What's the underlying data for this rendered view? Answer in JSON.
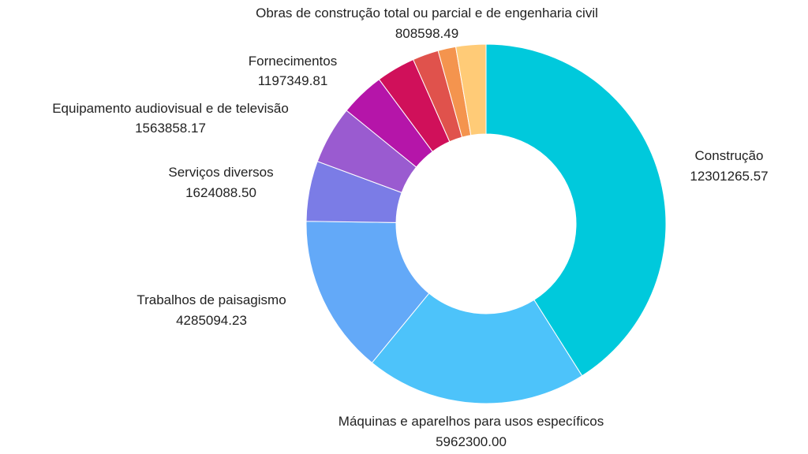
{
  "chart_data": {
    "type": "pie",
    "variant": "donut",
    "title": "",
    "legend": "none",
    "slices": [
      {
        "label": "Construção",
        "value_text": "12301265.57",
        "value": 12301265.57,
        "color": "#00C9DC"
      },
      {
        "label": "Máquinas e aparelhos para usos específicos",
        "value_text": "5962300.00",
        "value": 5962300.0,
        "color": "#4DC3FA"
      },
      {
        "label": "Trabalhos de paisagismo",
        "value_text": "4285094.23",
        "value": 4285094.23,
        "color": "#63A9F8"
      },
      {
        "label": "Serviços diversos",
        "value_text": "1624088.50",
        "value": 1624088.5,
        "color": "#7B7CE6"
      },
      {
        "label": "Equipamento audiovisual e de televisão",
        "value_text": "1563858.17",
        "value": 1563858.17,
        "color": "#9A5BD0"
      },
      {
        "label": "Fornecimentos",
        "value_text": "1197349.81",
        "value": 1197349.81,
        "color": "#B515A9"
      },
      {
        "label": "",
        "value_text": "",
        "value": 1050000,
        "color": "#D0105A"
      },
      {
        "label": "",
        "value_text": "",
        "value": 700000,
        "color": "#E0524C"
      },
      {
        "label": "",
        "value_text": "",
        "value": 480000,
        "color": "#F4944E"
      },
      {
        "label": "Obras de construção total ou parcial e de engenharia civil",
        "value_text": "808598.49",
        "value": 808598.49,
        "color": "#FFCB77"
      }
    ]
  }
}
